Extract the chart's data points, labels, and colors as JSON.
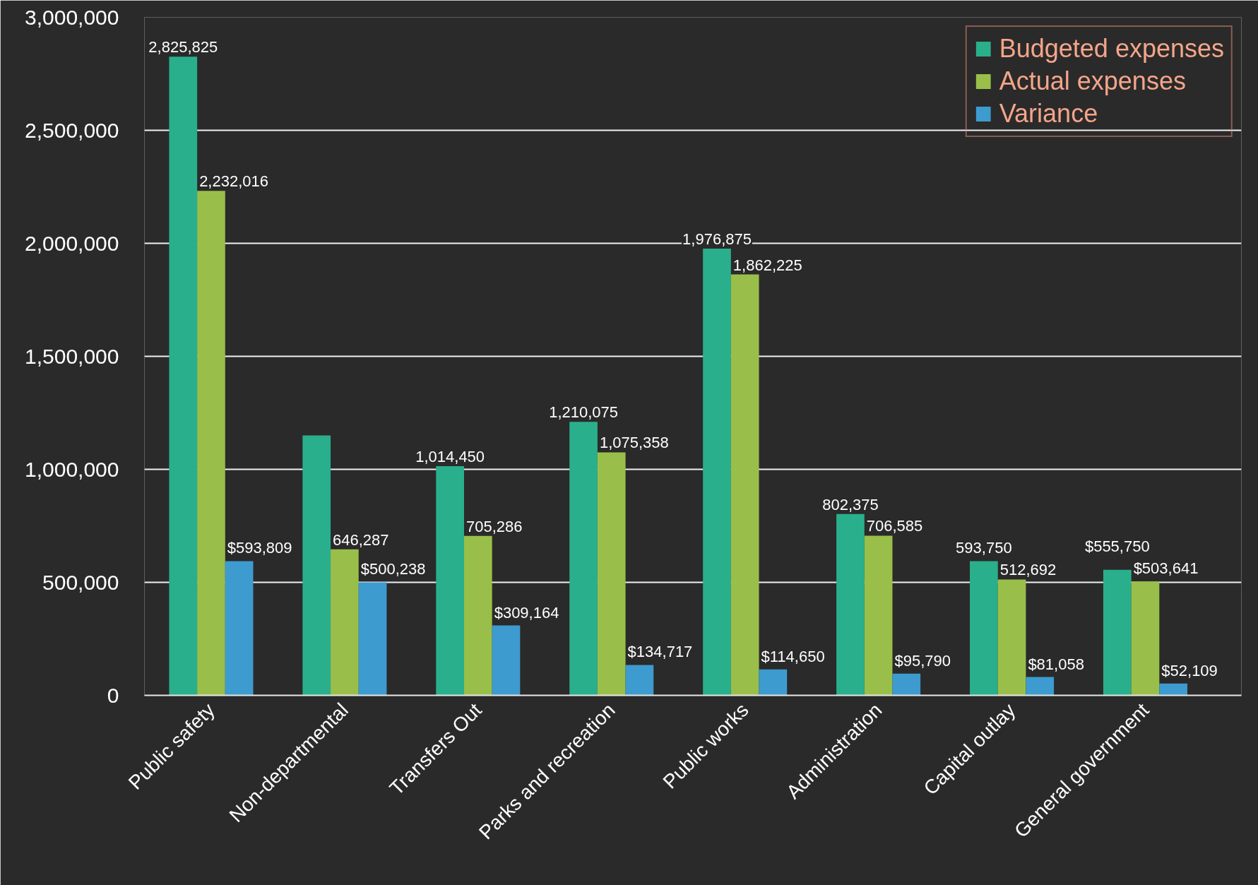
{
  "chart_data": {
    "type": "bar",
    "categories": [
      "Public safety",
      "Non-departmental",
      "Transfers Out",
      "Parks and recreation",
      "Public works",
      "Administration",
      "Capital outlay",
      "General government"
    ],
    "series": [
      {
        "name": "Budgeted expenses",
        "color": "#2aaf8c",
        "values": [
          2825825,
          1150000,
          1014450,
          1210075,
          1976875,
          802375,
          593750,
          555750
        ],
        "value_labels": [
          "2,825,825",
          null,
          "1,014,450",
          "1,210,075",
          "1,976,875",
          "802,375",
          "593,750",
          "$555,750"
        ]
      },
      {
        "name": "Actual expenses",
        "color": "#99bf4a",
        "values": [
          2232016,
          646287,
          705286,
          1075358,
          1862225,
          706585,
          512692,
          503641
        ],
        "value_labels": [
          "2,232,016",
          "646,287",
          "705,286",
          "1,075,358",
          "1,862,225",
          "706,585",
          "512,692",
          "$503,641"
        ]
      },
      {
        "name": "Variance",
        "color": "#3e9bcf",
        "values": [
          593809,
          500238,
          309164,
          134717,
          114650,
          95790,
          81058,
          52109
        ],
        "value_labels": [
          "$593,809",
          "$500,238",
          "$309,164",
          "$134,717",
          "$114,650",
          "$95,790",
          "$81,058",
          "$52,109"
        ]
      }
    ],
    "ylim": [
      0,
      3000000
    ],
    "yticks": [
      0,
      {
        "value": 500000,
        "label": "500,000"
      },
      {
        "value": 1000000,
        "label": "1,000,000"
      },
      {
        "value": 1500000,
        "label": "1,500,000"
      },
      {
        "value": 2000000,
        "label": "2,000,000"
      },
      {
        "value": 2500000,
        "label": "2,500,000"
      },
      {
        "value": 3000000,
        "label": "3,000,000"
      }
    ],
    "grid": "y",
    "legend": "top right"
  }
}
